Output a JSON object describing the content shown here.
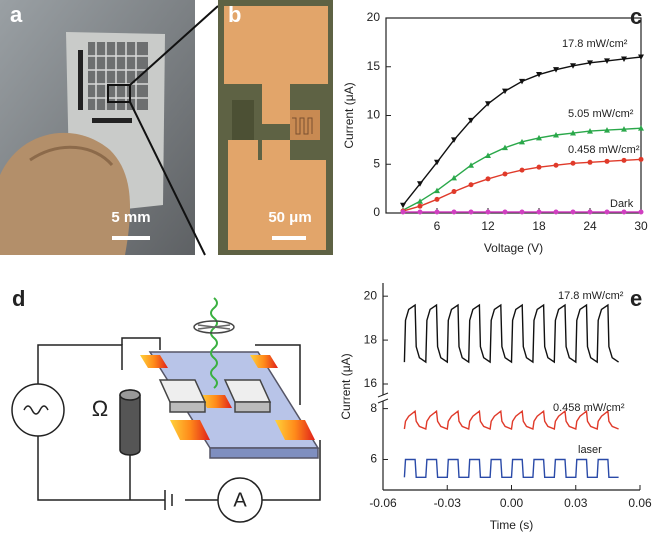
{
  "photos": [
    {
      "label": "a",
      "scale_bar": "5 mm"
    },
    {
      "label": "b",
      "scale_bar": "50 μm"
    }
  ],
  "diagram": {
    "label": "d",
    "resistor_symbol": "Ω",
    "meter_symbol": "A"
  },
  "chart_data": [
    {
      "type": "line",
      "label": "c",
      "xlabel": "Voltage (V)",
      "ylabel": "Current (μA)",
      "xlim": [
        0,
        30
      ],
      "xticks": [
        6,
        12,
        18,
        24,
        30
      ],
      "ylim": [
        0,
        20
      ],
      "yticks": [
        0,
        5,
        10,
        15,
        20
      ],
      "markers": true,
      "x": [
        2,
        4,
        6,
        8,
        10,
        12,
        14,
        16,
        18,
        20,
        22,
        24,
        26,
        28,
        30
      ],
      "series": [
        {
          "name": "17.8 mW/cm²",
          "color": "#111111",
          "marker": "triangle-down",
          "values": [
            0.8,
            3,
            5.2,
            7.5,
            9.5,
            11.2,
            12.5,
            13.5,
            14.2,
            14.7,
            15.1,
            15.4,
            15.6,
            15.8,
            16
          ]
        },
        {
          "name": "5.05 mW/cm²",
          "color": "#2aa84a",
          "marker": "triangle-up",
          "values": [
            0.3,
            1.2,
            2.3,
            3.6,
            4.9,
            5.9,
            6.7,
            7.3,
            7.7,
            8,
            8.2,
            8.4,
            8.5,
            8.6,
            8.7
          ]
        },
        {
          "name": "0.458 mW/cm²",
          "color": "#e03a2a",
          "marker": "circle",
          "values": [
            0.2,
            0.7,
            1.4,
            2.2,
            2.9,
            3.5,
            4,
            4.4,
            4.7,
            4.9,
            5.1,
            5.2,
            5.3,
            5.4,
            5.5
          ]
        },
        {
          "name": "Dark",
          "color": "#d040c0",
          "marker": "circle",
          "values": [
            0.1,
            0.1,
            0.1,
            0.1,
            0.1,
            0.1,
            0.1,
            0.1,
            0.1,
            0.1,
            0.1,
            0.1,
            0.1,
            0.1,
            0.1
          ]
        }
      ]
    },
    {
      "type": "line",
      "label": "e",
      "xlabel": "Time (s)",
      "ylabel": "Current (μA)",
      "xlim": [
        -0.06,
        0.06
      ],
      "xticks": [
        -0.06,
        -0.03,
        {
          "value": 0,
          "label": "0.00"
        },
        0.03,
        0.06
      ],
      "ylim": [
        4.8,
        20.6
      ],
      "ybreak": [
        8.3,
        15.5
      ],
      "yticks": [
        6,
        8,
        16,
        18,
        20
      ],
      "markers": false,
      "x": [
        -0.05,
        -0.0495,
        -0.048,
        -0.045,
        -0.0445,
        -0.043,
        -0.04,
        -0.0395,
        -0.038,
        -0.035,
        -0.0345,
        -0.033,
        -0.03,
        -0.0295,
        -0.028,
        -0.025,
        -0.0245,
        -0.023,
        -0.02,
        -0.0195,
        -0.018,
        -0.015,
        -0.0145,
        -0.013,
        -0.01,
        -0.0095,
        -0.008,
        -0.005,
        -0.0045,
        -0.003,
        0,
        0.0005,
        0.002,
        0.005,
        0.0055,
        0.007,
        0.01,
        0.0105,
        0.012,
        0.015,
        0.0155,
        0.017,
        0.02,
        0.0205,
        0.022,
        0.025,
        0.0255,
        0.027,
        0.03,
        0.0305,
        0.032,
        0.035,
        0.0355,
        0.037,
        0.04,
        0.0405,
        0.042,
        0.045,
        0.0455,
        0.047,
        0.05
      ],
      "series": [
        {
          "name": "17.8 mW/cm²",
          "color": "#111111",
          "values": [
            17,
            18.9,
            19.4,
            19.6,
            17.7,
            17.2,
            17,
            18.9,
            19.4,
            19.6,
            17.7,
            17.2,
            17,
            18.9,
            19.4,
            19.6,
            17.7,
            17.2,
            17,
            18.9,
            19.4,
            19.6,
            17.7,
            17.2,
            17,
            18.9,
            19.4,
            19.6,
            17.7,
            17.2,
            17,
            18.9,
            19.4,
            19.6,
            17.7,
            17.2,
            17,
            18.9,
            19.4,
            19.6,
            17.7,
            17.2,
            17,
            18.9,
            19.4,
            19.6,
            17.7,
            17.2,
            17,
            18.9,
            19.4,
            19.6,
            17.7,
            17.2,
            17,
            18.9,
            19.4,
            19.6,
            17.7,
            17.2,
            17
          ]
        },
        {
          "name": "0.458 mW/cm²",
          "color": "#e03a2a",
          "values": [
            7.2,
            7.5,
            7.7,
            7.9,
            7.5,
            7.3,
            7.2,
            7.5,
            7.7,
            7.9,
            7.5,
            7.3,
            7.2,
            7.5,
            7.7,
            7.9,
            7.5,
            7.3,
            7.2,
            7.5,
            7.7,
            7.9,
            7.5,
            7.3,
            7.2,
            7.5,
            7.7,
            7.9,
            7.5,
            7.3,
            7.2,
            7.5,
            7.7,
            7.9,
            7.5,
            7.3,
            7.2,
            7.5,
            7.7,
            7.9,
            7.5,
            7.3,
            7.2,
            7.5,
            7.7,
            7.9,
            7.5,
            7.3,
            7.2,
            7.5,
            7.7,
            7.9,
            7.5,
            7.3,
            7.2,
            7.5,
            7.7,
            7.9,
            7.5,
            7.3,
            7.2
          ]
        },
        {
          "name": "laser",
          "color": "#2a4aa8",
          "values": [
            5.3,
            6,
            6,
            6,
            5.3,
            5.3,
            5.3,
            6,
            6,
            6,
            5.3,
            5.3,
            5.3,
            6,
            6,
            6,
            5.3,
            5.3,
            5.3,
            6,
            6,
            6,
            5.3,
            5.3,
            5.3,
            6,
            6,
            6,
            5.3,
            5.3,
            5.3,
            6,
            6,
            6,
            5.3,
            5.3,
            5.3,
            6,
            6,
            6,
            5.3,
            5.3,
            5.3,
            6,
            6,
            6,
            5.3,
            5.3,
            5.3,
            6,
            6,
            6,
            5.3,
            5.3,
            5.3,
            6,
            6,
            6,
            5.3,
            5.3,
            5.3
          ]
        }
      ]
    }
  ]
}
